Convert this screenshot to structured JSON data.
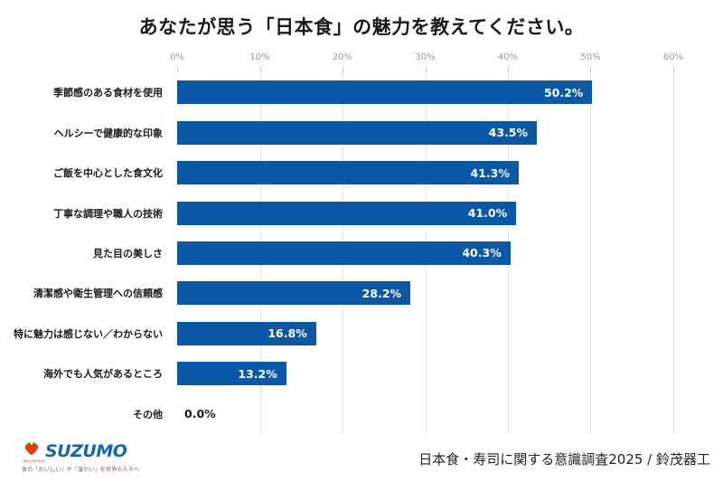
{
  "title": "あなたが思う「日本食」の魅力を教えてください。",
  "chart_data": {
    "type": "bar",
    "orientation": "horizontal",
    "title": "あなたが思う「日本食」の魅力を教えてください。",
    "categories": [
      "季節感のある食材を使用",
      "ヘルシーで健康的な印象",
      "ご飯を中心とした食文化",
      "丁寧な調理や職人の技術",
      "見た目の美しさ",
      "清潔感や衛生管理への信頼感",
      "特に魅力は感じない／わからない",
      "海外でも人気があるところ",
      "その他"
    ],
    "values": [
      50.2,
      43.5,
      41.3,
      41.0,
      40.3,
      28.2,
      16.8,
      13.2,
      0.0
    ],
    "rows": [
      {
        "label": "季節感のある食材を使用",
        "value": 50.2,
        "display": "50.2%"
      },
      {
        "label": "ヘルシーで健康的な印象",
        "value": 43.5,
        "display": "43.5%"
      },
      {
        "label": "ご飯を中心とした食文化",
        "value": 41.3,
        "display": "41.3%"
      },
      {
        "label": "丁寧な調理や職人の技術",
        "value": 41.0,
        "display": "41.0%"
      },
      {
        "label": "見た目の美しさ",
        "value": 40.3,
        "display": "40.3%"
      },
      {
        "label": "清潔感や衛生管理への信頼感",
        "value": 28.2,
        "display": "28.2%"
      },
      {
        "label": "特に魅力は感じない／わからない",
        "value": 16.8,
        "display": "16.8%"
      },
      {
        "label": "海外でも人気があるところ",
        "value": 13.2,
        "display": "13.2%"
      },
      {
        "label": "その他",
        "value": 0.0,
        "display": "0.0%"
      }
    ],
    "x_ticks": [
      "0%",
      "10%",
      "20%",
      "30%",
      "40%",
      "50%",
      "60%"
    ],
    "xlim": [
      0,
      60
    ],
    "xlabel": "",
    "ylabel": "",
    "grid": true,
    "legend": false,
    "bar_color": "#0b58a6",
    "value_label_color_inside": "#ffffff",
    "value_label_color_outside": "#1a1a1a"
  },
  "footer": {
    "logo_wordmark": "SUZUMO",
    "logo_heart_caption": "WE LOVE RICE",
    "logo_tagline": "食の「おいしい」や「温かい」を世界の人々へ",
    "source": "日本食・寿司に関する意識調査2025 / 鈴茂器工"
  },
  "colors": {
    "bar": "#0b58a6",
    "gridline": "#e5e5e5",
    "axis_text": "#9a9a9a",
    "title_text": "#1a1a1a",
    "logo_blue": "#1565af",
    "logo_red": "#e8380d",
    "logo_green": "#3aa935"
  }
}
